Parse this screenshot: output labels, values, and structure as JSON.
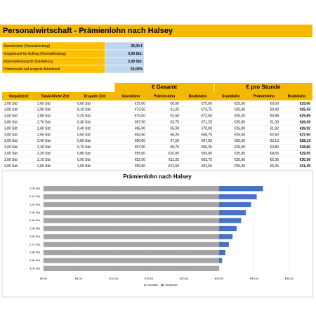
{
  "header": {
    "title": "Personalwirtschaft - Prämienlohn nach Halsey"
  },
  "params": [
    {
      "label": "Stundenlohn (Normalleistung)",
      "value": "25,00 €"
    },
    {
      "label": "Vorgabezeit für Auftrag (Normalleistung)",
      "value": "3,00 Std."
    },
    {
      "label": "Maximalleistung für Darstellung",
      "value": "2,00 Std."
    },
    {
      "label": "Prämiensatz auf ersparte Arbeitszeit",
      "value": "50,00%"
    }
  ],
  "table": {
    "groups": [
      "€ Gesamt",
      "€ pro Stunde"
    ],
    "columns": [
      "Vorgabezeit",
      "Tatsächliche Zeit",
      "Ersparte Zeit",
      "Grundlohn",
      "Prämienlohn",
      "Bruttolohn",
      "Grundlohn",
      "Prämienlohn",
      "Bruttolohn"
    ],
    "rows": [
      [
        "3,00 Std",
        "3,00 Std",
        "0,00 Std",
        "€75,00",
        "€0,00",
        "€75,00",
        "€25,00",
        "€0,00",
        "€25,00"
      ],
      [
        "3,00 Std",
        "2,90 Std",
        "0,10 Std",
        "€72,50",
        "€1,25",
        "€73,75",
        "€25,00",
        "€0,43",
        "€25,43"
      ],
      [
        "3,00 Std",
        "2,80 Std",
        "0,20 Std",
        "€70,00",
        "€2,50",
        "€72,50",
        "€25,00",
        "€0,89",
        "€25,89"
      ],
      [
        "3,00 Std",
        "2,70 Std",
        "0,30 Std",
        "€67,50",
        "€3,75",
        "€71,25",
        "€25,00",
        "€1,39",
        "€26,39"
      ],
      [
        "3,00 Std",
        "2,60 Std",
        "0,40 Std",
        "€65,00",
        "€5,00",
        "€70,00",
        "€25,00",
        "€1,92",
        "€26,92"
      ],
      [
        "3,00 Std",
        "2,50 Std",
        "0,50 Std",
        "€62,50",
        "€6,25",
        "€68,75",
        "€25,00",
        "€2,50",
        "€27,50"
      ],
      [
        "3,00 Std",
        "2,40 Std",
        "0,60 Std",
        "€60,00",
        "€7,50",
        "€67,50",
        "€25,00",
        "€3,13",
        "€28,13"
      ],
      [
        "3,00 Std",
        "2,30 Std",
        "0,70 Std",
        "€57,50",
        "€8,75",
        "€66,25",
        "€25,00",
        "€3,80",
        "€28,80"
      ],
      [
        "3,00 Std",
        "2,20 Std",
        "0,80 Std",
        "€55,00",
        "€10,00",
        "€65,00",
        "€25,00",
        "€4,55",
        "€29,55"
      ],
      [
        "3,00 Std",
        "2,10 Std",
        "0,90 Std",
        "€52,50",
        "€11,25",
        "€63,75",
        "€25,00",
        "€5,36",
        "€30,36"
      ],
      [
        "3,00 Std",
        "2,00 Std",
        "1,00 Std",
        "€50,00",
        "€12,50",
        "€62,50",
        "€25,00",
        "€6,25",
        "€31,25"
      ]
    ]
  },
  "chart_data": {
    "type": "bar",
    "orientation": "horizontal",
    "stacked": true,
    "title": "Prämienlohn nach Halsey",
    "categories": [
      "2,00 Std.",
      "2,10 Std.",
      "2,20 Std.",
      "2,30 Std.",
      "2,40 Std.",
      "2,50 Std.",
      "2,60 Std.",
      "2,70 Std.",
      "2,80 Std.",
      "2,90 Std.",
      "3,00 Std."
    ],
    "series": [
      {
        "name": "Grundlohn",
        "color": "#a5a5a5",
        "values": [
          25,
          25,
          25,
          25,
          25,
          25,
          25,
          25,
          25,
          25,
          25
        ]
      },
      {
        "name": "Prämienlohn",
        "color": "#4472c4",
        "values": [
          6.25,
          5.36,
          4.55,
          3.8,
          3.13,
          2.5,
          1.92,
          1.39,
          0.89,
          0.43,
          0
        ]
      }
    ],
    "xlim": [
      0,
      35
    ],
    "xticks": [
      {
        "value": 0,
        "label": "€0,00"
      },
      {
        "value": 5,
        "label": "€5,00"
      },
      {
        "value": 10,
        "label": "€10,00"
      },
      {
        "value": 15,
        "label": "€15,00"
      },
      {
        "value": 20,
        "label": "€20,00"
      },
      {
        "value": 25,
        "label": "€25,00"
      },
      {
        "value": 30,
        "label": "€30,00"
      },
      {
        "value": 35,
        "label": "€35,00"
      }
    ],
    "grid": true,
    "legend": "bottom"
  }
}
